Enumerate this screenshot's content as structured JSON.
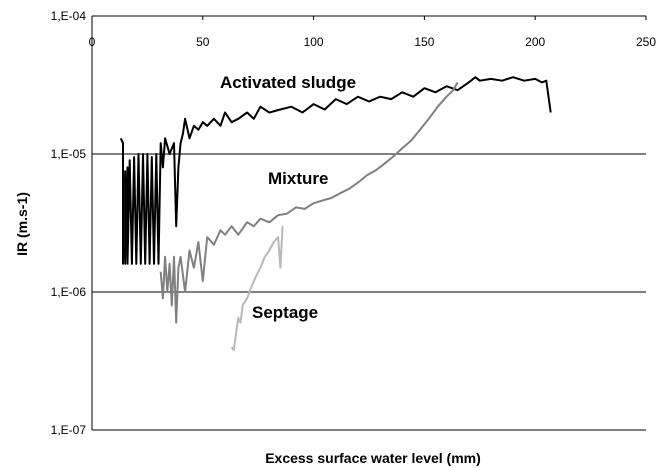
{
  "chart_data": {
    "type": "line",
    "title": "",
    "xlabel": "Excess surface water level (mm)",
    "ylabel": "IR (m.s-1)",
    "xlim": [
      0,
      250
    ],
    "ylim": [
      1e-07,
      0.0001
    ],
    "yscale": "log",
    "grid": "horizontal",
    "legend": "none",
    "x_tick_labels": [
      "0",
      "50",
      "100",
      "150",
      "200",
      "250"
    ],
    "y_tick_labels": [
      "1,E-07",
      "1,E-06",
      "1,E-05",
      "1,E-04"
    ],
    "series": [
      {
        "name": "Activated sludge",
        "color": "#000000",
        "x": [
          13,
          14,
          14,
          15,
          15,
          16,
          16,
          17,
          18,
          19,
          20,
          21,
          22,
          23,
          24,
          25,
          26,
          27,
          28,
          29,
          30,
          31,
          32,
          33,
          35,
          37,
          38,
          39,
          40,
          41,
          42,
          44,
          46,
          48,
          50,
          52,
          55,
          58,
          60,
          63,
          66,
          70,
          73,
          76,
          80,
          85,
          90,
          95,
          100,
          105,
          110,
          115,
          120,
          125,
          130,
          135,
          140,
          145,
          150,
          155,
          160,
          165,
          170,
          173,
          175,
          180,
          185,
          190,
          195,
          200,
          203,
          205,
          207
        ],
        "y": [
          1.3e-05,
          1.2e-05,
          1.6e-06,
          7.5e-06,
          1.6e-06,
          8e-06,
          1.6e-06,
          9e-06,
          1.6e-06,
          9.5e-06,
          1.6e-06,
          1e-05,
          1.6e-06,
          1e-05,
          1.6e-06,
          1e-05,
          1.6e-06,
          9.5e-06,
          1.6e-06,
          1e-05,
          1.6e-06,
          1.2e-05,
          8e-06,
          1.3e-05,
          1e-05,
          1.2e-05,
          3e-06,
          8e-06,
          1.2e-05,
          1.4e-05,
          1.8e-05,
          1.3e-05,
          1.6e-05,
          1.5e-05,
          1.7e-05,
          1.6e-05,
          1.8e-05,
          1.6e-05,
          2e-05,
          1.7e-05,
          1.8e-05,
          2e-05,
          1.8e-05,
          2.2e-05,
          2e-05,
          2.1e-05,
          2.2e-05,
          2e-05,
          2.3e-05,
          2.1e-05,
          2.5e-05,
          2.3e-05,
          2.6e-05,
          2.4e-05,
          2.6e-05,
          2.5e-05,
          2.8e-05,
          2.6e-05,
          3e-05,
          2.8e-05,
          3.1e-05,
          2.9e-05,
          3.3e-05,
          3.6e-05,
          3.4e-05,
          3.5e-05,
          3.4e-05,
          3.6e-05,
          3.4e-05,
          3.5e-05,
          3.3e-05,
          3.4e-05,
          2e-05
        ]
      },
      {
        "name": "Mixture",
        "color": "#808080",
        "x": [
          31,
          32,
          33,
          34,
          35,
          36,
          37,
          38,
          39,
          40,
          42,
          44,
          46,
          48,
          50,
          52,
          55,
          58,
          60,
          63,
          66,
          70,
          73,
          76,
          80,
          84,
          88,
          92,
          96,
          100,
          104,
          108,
          112,
          116,
          120,
          124,
          128,
          132,
          136,
          140,
          144,
          148,
          152,
          156,
          160,
          163,
          165
        ],
        "y": [
          1.4e-06,
          9e-07,
          1.8e-06,
          1e-06,
          1.6e-06,
          8e-07,
          1.8e-06,
          6e-07,
          1.5e-06,
          1.8e-06,
          1e-06,
          2e-06,
          1.5e-06,
          2.3e-06,
          1.2e-06,
          2.5e-06,
          2.2e-06,
          2.8e-06,
          2.6e-06,
          3e-06,
          2.6e-06,
          3.2e-06,
          3e-06,
          3.4e-06,
          3.2e-06,
          3.6e-06,
          3.7e-06,
          4.1e-06,
          4e-06,
          4.4e-06,
          4.6e-06,
          4.8e-06,
          5.2e-06,
          5.6e-06,
          6.2e-06,
          7e-06,
          7.6e-06,
          8.5e-06,
          9.6e-06,
          1.1e-05,
          1.25e-05,
          1.5e-05,
          1.8e-05,
          2.2e-05,
          2.6e-05,
          2.9e-05,
          3.3e-05
        ]
      },
      {
        "name": "Septage",
        "color": "#b8b8b8",
        "x": [
          63,
          64,
          65,
          66,
          67,
          68,
          70,
          72,
          74,
          76,
          78,
          80,
          82,
          84,
          85,
          86
        ],
        "y": [
          4e-07,
          3.8e-07,
          5e-07,
          6.5e-07,
          6e-07,
          8e-07,
          9e-07,
          1.1e-06,
          1.3e-06,
          1.5e-06,
          1.8e-06,
          2e-06,
          2.3e-06,
          2.5e-06,
          1.5e-06,
          3e-06
        ]
      }
    ],
    "annotations": [
      "Activated sludge",
      "Mixture",
      "Septage"
    ]
  }
}
